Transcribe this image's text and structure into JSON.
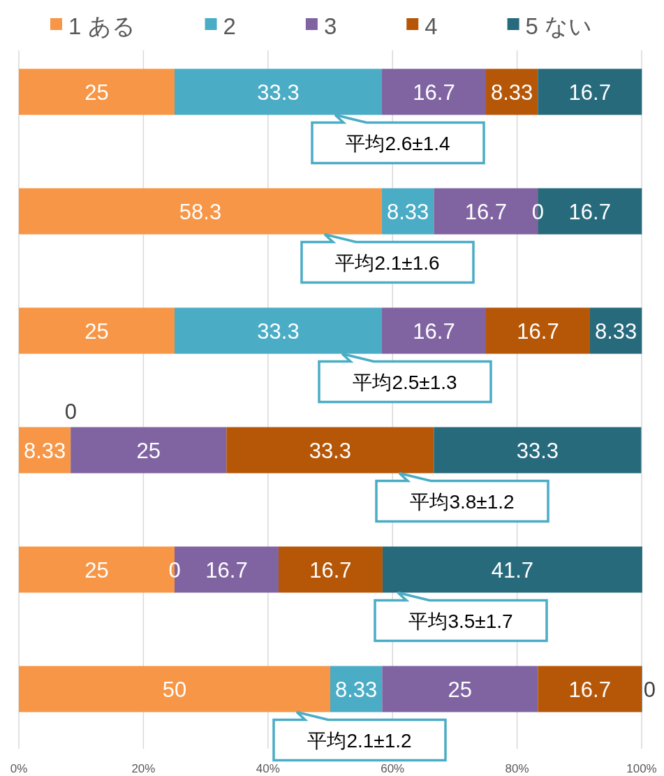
{
  "chart_data": {
    "type": "bar",
    "orientation": "horizontal",
    "stacked": true,
    "categories": [
      null,
      null,
      null,
      null,
      null,
      null
    ],
    "series": [
      {
        "name": "1 ある",
        "color": "#f79646",
        "values": [
          25,
          58.3,
          25,
          8.33,
          25,
          50
        ]
      },
      {
        "name": "2",
        "color": "#4bacc6",
        "values": [
          33.3,
          8.33,
          33.3,
          0,
          0,
          8.33
        ]
      },
      {
        "name": "3",
        "color": "#8064a2",
        "values": [
          16.7,
          16.7,
          16.7,
          25,
          16.7,
          25
        ]
      },
      {
        "name": "4",
        "color": "#b65708",
        "values": [
          8.33,
          0,
          16.7,
          33.3,
          16.7,
          16.7
        ]
      },
      {
        "name": "5 ない",
        "color": "#276a7c",
        "values": [
          16.7,
          16.7,
          8.33,
          33.3,
          41.7,
          0
        ]
      }
    ],
    "xlim": [
      0,
      100
    ],
    "xticks": [
      {
        "value": 0,
        "label": "0%"
      },
      {
        "value": 20,
        "label": "20%"
      },
      {
        "value": 40,
        "label": "40%"
      },
      {
        "value": 60,
        "label": "60%"
      },
      {
        "value": 80,
        "label": "80%"
      },
      {
        "value": 100,
        "label": "100%"
      }
    ],
    "grid": "x",
    "legend": "top",
    "data_labels": true,
    "annotations": [
      "平均2.6±1.4",
      "平均2.1±1.6",
      "平均2.5±1.3",
      "平均3.8±1.2",
      "平均3.5±1.7",
      "平均2.1±1.2"
    ]
  }
}
